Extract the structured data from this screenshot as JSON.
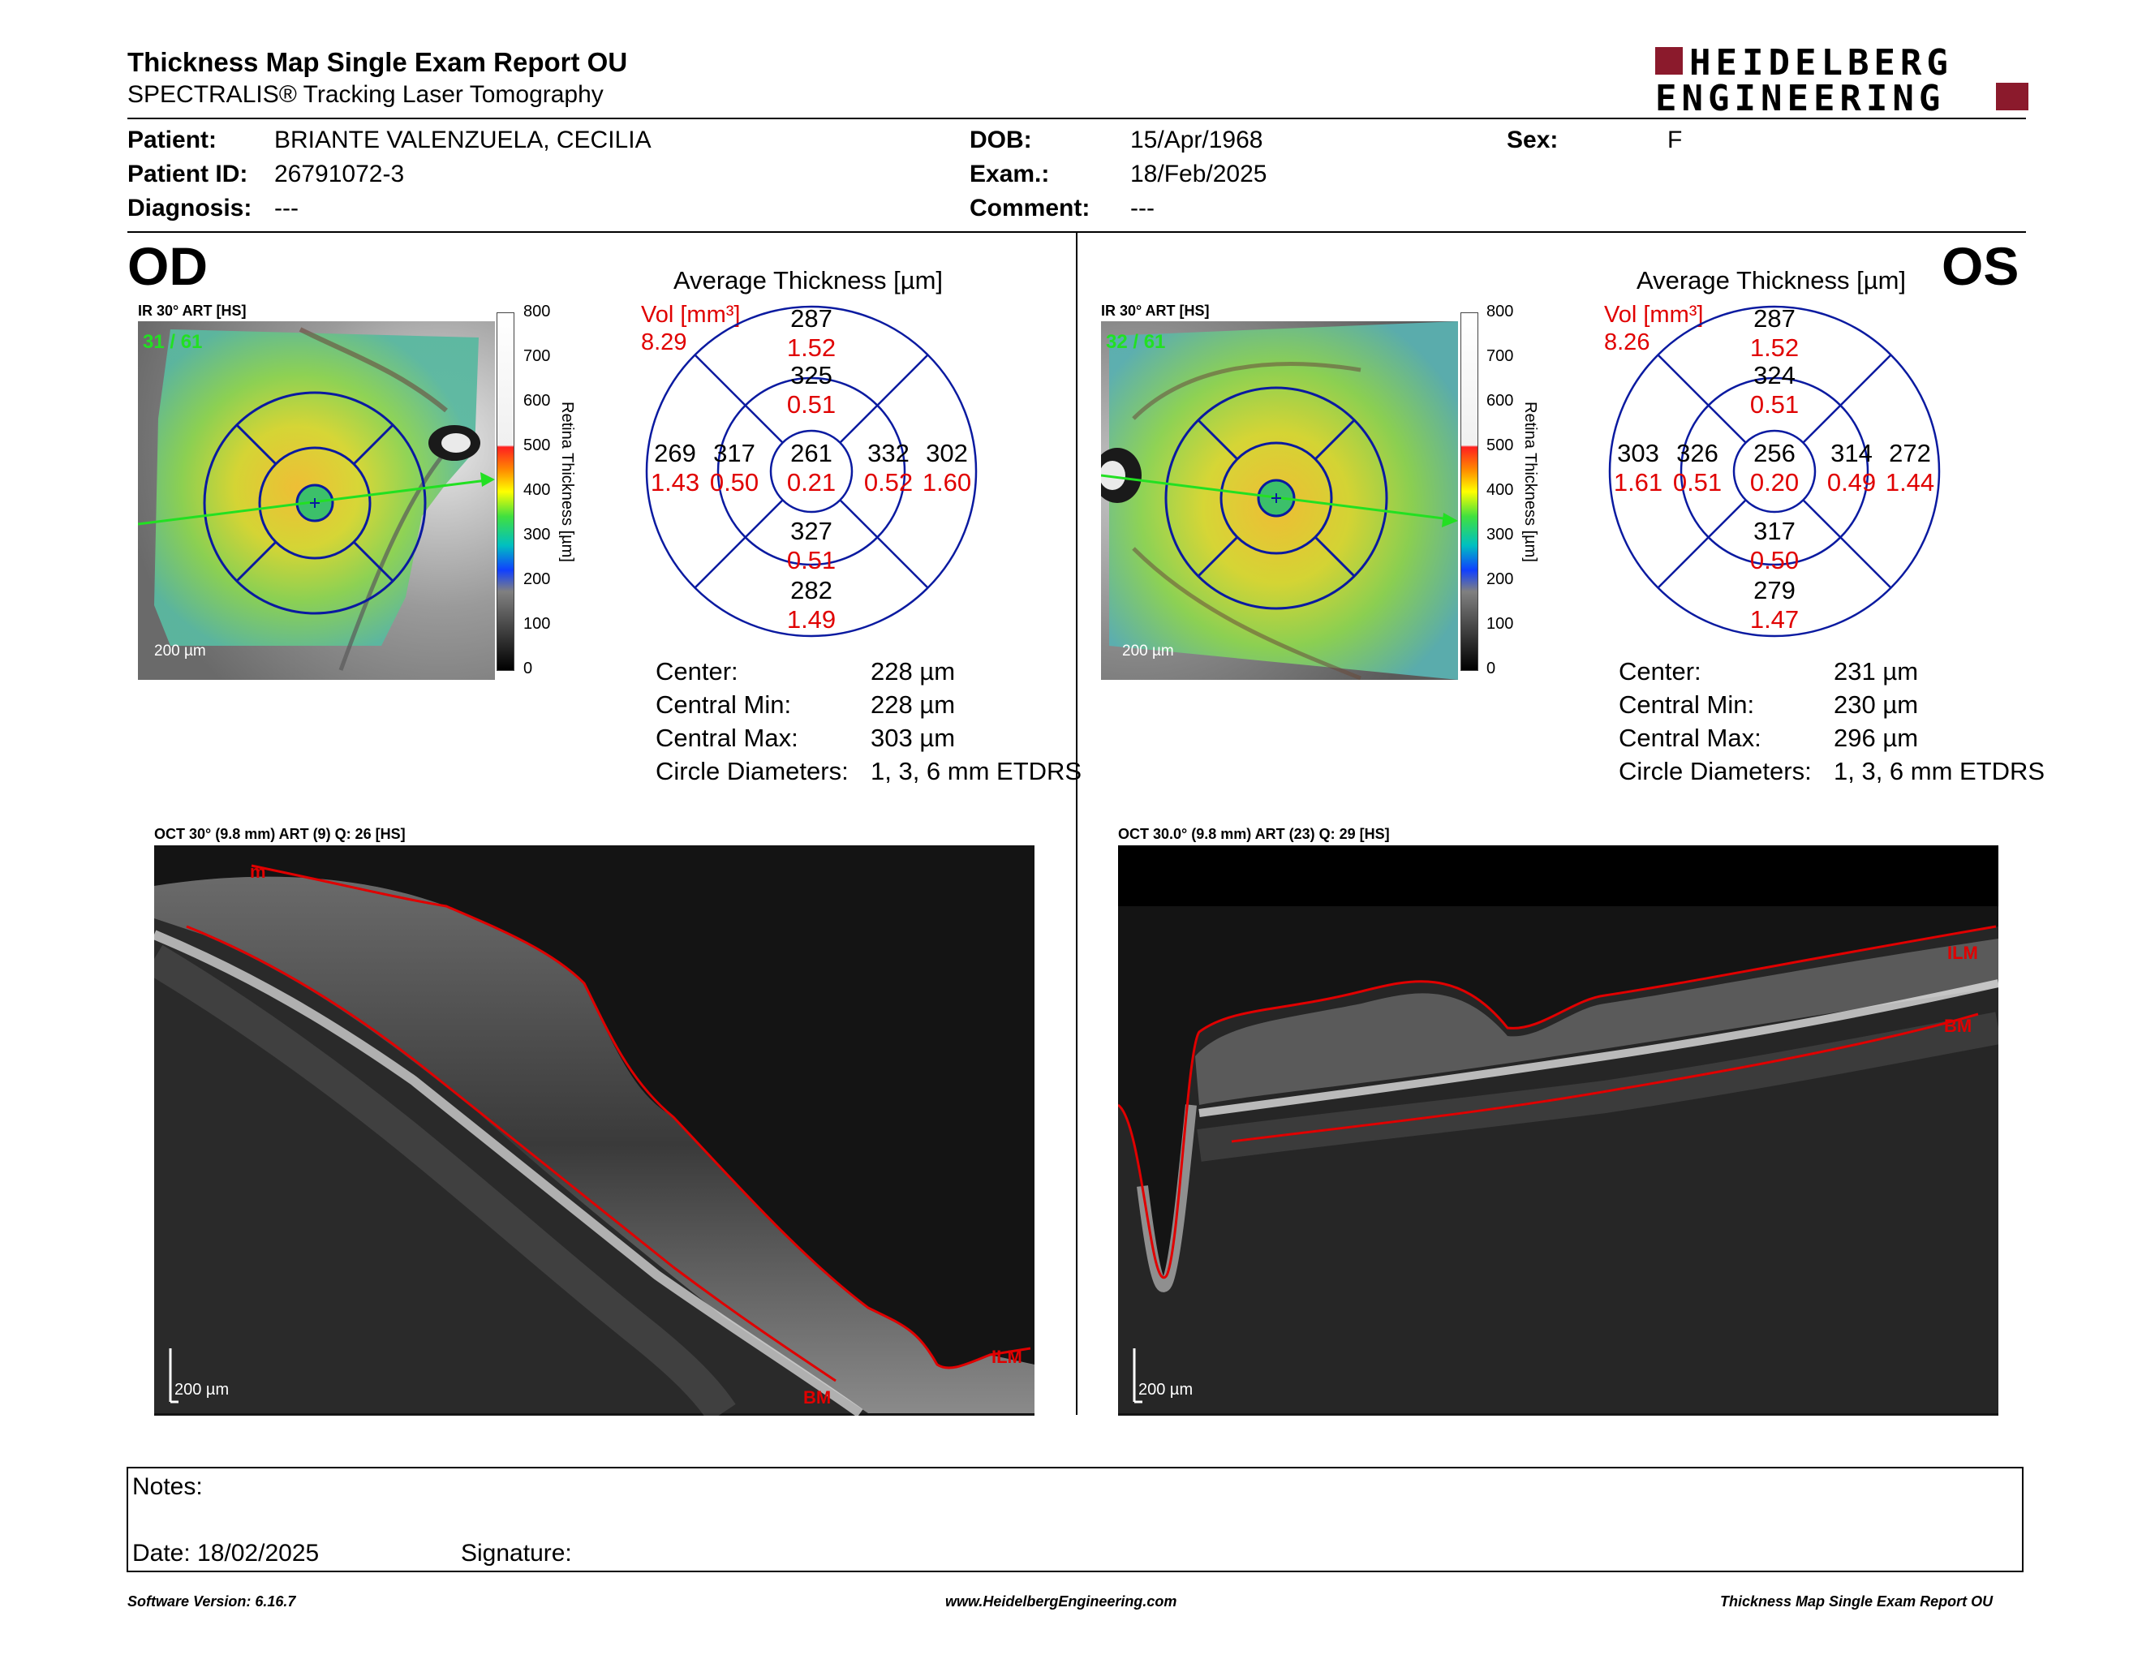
{
  "report": {
    "title": "Thickness Map Single Exam Report OU",
    "subtitle": "SPECTRALIS® Tracking Laser Tomography",
    "logo_line1": "HEIDELBERG",
    "logo_line2": "ENGINEERING",
    "brand_color": "#8b1a2c"
  },
  "patient": {
    "patient_label": "Patient:",
    "patient_value": "BRIANTE VALENZUELA, CECILIA",
    "id_label": "Patient ID:",
    "id_value": "26791072-3",
    "diag_label": "Diagnosis:",
    "diag_value": "---",
    "dob_label": "DOB:",
    "dob_value": "15/Apr/1968",
    "exam_label": "Exam.:",
    "exam_value": "18/Feb/2025",
    "comment_label": "Comment:",
    "comment_value": "---",
    "sex_label": "Sex:",
    "sex_value": "F"
  },
  "colorbar": {
    "ticks": [
      "800",
      "700",
      "600",
      "500",
      "400",
      "300",
      "200",
      "100",
      "0"
    ],
    "title": "Retina  Thickness [µm]"
  },
  "od": {
    "eye": "OD",
    "ir_label": "IR 30° ART [HS]",
    "frames": "31 / 61",
    "scale": "200 µm",
    "avg_title": "Average Thickness [µm]",
    "vol_label": "Vol [mm³]",
    "vol_value": "8.29",
    "etdrs": {
      "top_outer": [
        "287",
        "1.52"
      ],
      "top_inner": [
        "325",
        "0.51"
      ],
      "left_outer": [
        "269",
        "1.43"
      ],
      "left_inner": [
        "317",
        "0.50"
      ],
      "center": [
        "261",
        "0.21"
      ],
      "right_inner": [
        "332",
        "0.52"
      ],
      "right_outer": [
        "302",
        "1.60"
      ],
      "bottom_inner": [
        "327",
        "0.51"
      ],
      "bottom_outer": [
        "282",
        "1.49"
      ]
    },
    "stats": [
      {
        "label": "Center:",
        "value": "228 µm"
      },
      {
        "label": "Central Min:",
        "value": "228 µm"
      },
      {
        "label": "Central Max:",
        "value": "303 µm"
      },
      {
        "label": "Circle Diameters:",
        "value": "1, 3, 6 mm ETDRS"
      }
    ],
    "oct_label": "OCT 30° (9.8 mm) ART (9) Q: 26 [HS]",
    "oct_scale": "200 µm",
    "oct_marks": {
      "top": "m",
      "ilm": "ILM",
      "bm": "BM"
    }
  },
  "os": {
    "eye": "OS",
    "ir_label": "IR 30° ART [HS]",
    "frames": "32 / 61",
    "scale": "200 µm",
    "avg_title": "Average Thickness [µm]",
    "vol_label": "Vol [mm³]",
    "vol_value": "8.26",
    "etdrs": {
      "top_outer": [
        "287",
        "1.52"
      ],
      "top_inner": [
        "324",
        "0.51"
      ],
      "left_outer": [
        "303",
        "1.61"
      ],
      "left_inner": [
        "326",
        "0.51"
      ],
      "center": [
        "256",
        "0.20"
      ],
      "right_inner": [
        "314",
        "0.49"
      ],
      "right_outer": [
        "272",
        "1.44"
      ],
      "bottom_inner": [
        "317",
        "0.50"
      ],
      "bottom_outer": [
        "279",
        "1.47"
      ]
    },
    "stats": [
      {
        "label": "Center:",
        "value": "231 µm"
      },
      {
        "label": "Central Min:",
        "value": "230 µm"
      },
      {
        "label": "Central Max:",
        "value": "296 µm"
      },
      {
        "label": "Circle Diameters:",
        "value": "1, 3, 6 mm ETDRS"
      }
    ],
    "oct_label": "OCT 30.0° (9.8 mm) ART (23) Q: 29 [HS]",
    "oct_scale": "200 µm",
    "oct_marks": {
      "ilm": "ILM",
      "bm": "BM"
    }
  },
  "notes": {
    "notes_label": "Notes:",
    "date_label": "Date: 18/02/2025",
    "signature_label": "Signature:"
  },
  "footer": {
    "software": "Software Version: 6.16.7",
    "url": "www.HeidelbergEngineering.com",
    "report_name": "Thickness Map Single Exam Report OU"
  }
}
